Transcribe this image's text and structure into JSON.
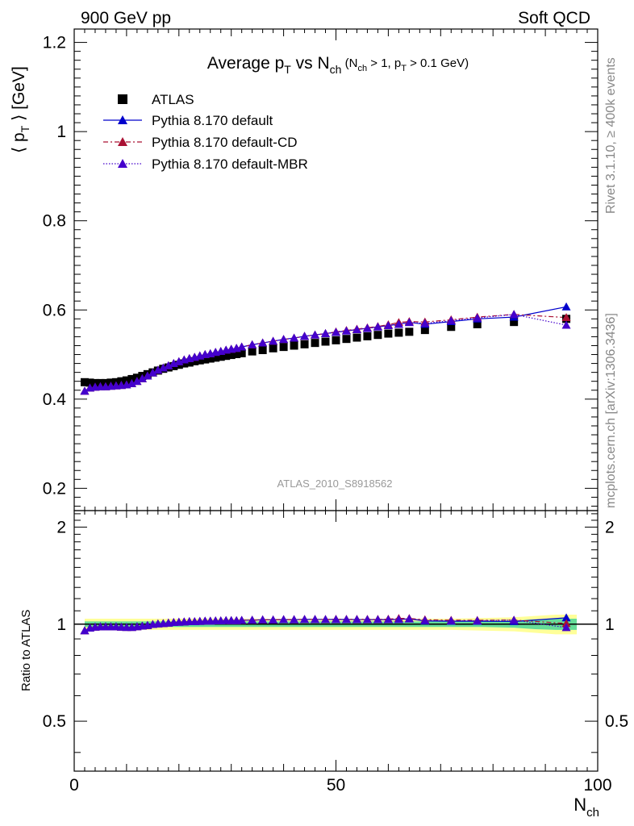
{
  "header": {
    "left": "900 GeV pp",
    "right": "Soft QCD"
  },
  "side_labels": {
    "rivet": "Rivet 3.1.10, ≥ 400k events",
    "mcplots": "mcplots.cern.ch [arXiv:1306.3436]"
  },
  "chart_data": {
    "type": "scatter",
    "title": {
      "main": "Average p",
      "sub_T": "T",
      "vs": " vs N",
      "sub_ch": "ch",
      "cond_open": " (N",
      "cond_ch": "ch",
      "cond_mid": " > 1, p",
      "cond_T": "T",
      "cond_close": " > 0.1 GeV)"
    },
    "watermark": "ATLAS_2010_S8918562",
    "xlabel": {
      "main": "N",
      "sub": "ch"
    },
    "ylabel": {
      "open": "⟨ p",
      "sub": "T",
      "close": " ⟩  [GeV]"
    },
    "ratio_ylabel": "Ratio to ATLAS",
    "xlim": [
      0,
      100
    ],
    "ylim": [
      0.15,
      1.23
    ],
    "ratio_ylim": [
      0.35,
      2.25
    ],
    "x_ticks": [
      "0",
      "50",
      "100"
    ],
    "y_ticks": [
      "0.2",
      "0.4",
      "0.6",
      "0.8",
      "1",
      "1.2"
    ],
    "ratio_ticks": [
      "0.5",
      "1",
      "2"
    ],
    "legend_position": "top-left",
    "x": [
      2,
      3,
      4,
      5,
      6,
      7,
      8,
      9,
      10,
      11,
      12,
      13,
      14,
      15,
      16,
      17,
      18,
      19,
      20,
      21,
      22,
      23,
      24,
      25,
      26,
      27,
      28,
      29,
      30,
      31,
      32,
      34,
      36,
      38,
      40,
      42,
      44,
      46,
      48,
      50,
      52,
      54,
      56,
      58,
      60,
      62,
      64,
      67,
      72,
      77,
      84,
      94
    ],
    "series": [
      {
        "name": "ATLAS",
        "color": "#000000",
        "marker": "square",
        "values": [
          0.438,
          0.437,
          0.436,
          0.436,
          0.436,
          0.437,
          0.438,
          0.44,
          0.442,
          0.445,
          0.448,
          0.452,
          0.456,
          0.46,
          0.464,
          0.468,
          0.471,
          0.474,
          0.477,
          0.48,
          0.482,
          0.485,
          0.487,
          0.489,
          0.491,
          0.493,
          0.495,
          0.497,
          0.499,
          0.501,
          0.503,
          0.507,
          0.51,
          0.514,
          0.517,
          0.52,
          0.523,
          0.526,
          0.529,
          0.532,
          0.535,
          0.538,
          0.541,
          0.544,
          0.547,
          0.549,
          0.551,
          0.555,
          0.562,
          0.568,
          0.573,
          0.58
        ]
      },
      {
        "name": "Pythia 8.170 default",
        "color": "#0000cc",
        "marker": "triangle",
        "dash": "",
        "values": [
          0.418,
          0.425,
          0.427,
          0.428,
          0.428,
          0.429,
          0.43,
          0.431,
          0.432,
          0.435,
          0.44,
          0.446,
          0.452,
          0.459,
          0.465,
          0.47,
          0.475,
          0.48,
          0.484,
          0.488,
          0.491,
          0.494,
          0.497,
          0.5,
          0.502,
          0.505,
          0.507,
          0.51,
          0.512,
          0.514,
          0.517,
          0.522,
          0.526,
          0.53,
          0.534,
          0.537,
          0.541,
          0.544,
          0.547,
          0.55,
          0.553,
          0.556,
          0.559,
          0.562,
          0.565,
          0.568,
          0.572,
          0.568,
          0.574,
          0.58,
          0.584,
          0.607
        ]
      },
      {
        "name": "Pythia 8.170 default-CD",
        "color": "#aa1133",
        "marker": "triangle",
        "dash": "6,3,2,3",
        "values": [
          0.418,
          0.425,
          0.427,
          0.428,
          0.428,
          0.429,
          0.43,
          0.431,
          0.432,
          0.435,
          0.44,
          0.446,
          0.452,
          0.459,
          0.465,
          0.47,
          0.475,
          0.48,
          0.484,
          0.488,
          0.491,
          0.494,
          0.497,
          0.5,
          0.502,
          0.505,
          0.507,
          0.51,
          0.512,
          0.514,
          0.517,
          0.522,
          0.526,
          0.53,
          0.534,
          0.537,
          0.541,
          0.544,
          0.547,
          0.551,
          0.554,
          0.557,
          0.56,
          0.563,
          0.567,
          0.572,
          0.574,
          0.573,
          0.578,
          0.584,
          0.59,
          0.583
        ]
      },
      {
        "name": "Pythia 8.170 default-MBR",
        "color": "#4400cc",
        "marker": "triangle",
        "dash": "1.5,2",
        "values": [
          0.418,
          0.425,
          0.427,
          0.428,
          0.428,
          0.429,
          0.43,
          0.431,
          0.432,
          0.435,
          0.44,
          0.446,
          0.452,
          0.459,
          0.465,
          0.47,
          0.475,
          0.48,
          0.484,
          0.488,
          0.491,
          0.494,
          0.497,
          0.5,
          0.502,
          0.505,
          0.507,
          0.51,
          0.512,
          0.514,
          0.517,
          0.522,
          0.526,
          0.53,
          0.534,
          0.537,
          0.541,
          0.544,
          0.547,
          0.55,
          0.553,
          0.556,
          0.559,
          0.562,
          0.565,
          0.568,
          0.572,
          0.57,
          0.576,
          0.582,
          0.59,
          0.566
        ]
      }
    ],
    "band_colors": {
      "inner": "#66dd99",
      "outer": "#ffff99"
    },
    "band_x": [
      2,
      6,
      10,
      14,
      18,
      22,
      26,
      30,
      36,
      42,
      48,
      54,
      60,
      66,
      72,
      78,
      84,
      88,
      92,
      96
    ],
    "band_inner": [
      0.02,
      0.02,
      0.02,
      0.02,
      0.02,
      0.02,
      0.02,
      0.02,
      0.02,
      0.02,
      0.02,
      0.02,
      0.02,
      0.02,
      0.02,
      0.02,
      0.025,
      0.035,
      0.04,
      0.04
    ],
    "band_outer": [
      0.04,
      0.04,
      0.04,
      0.04,
      0.04,
      0.04,
      0.04,
      0.04,
      0.04,
      0.04,
      0.04,
      0.04,
      0.04,
      0.04,
      0.04,
      0.045,
      0.05,
      0.06,
      0.07,
      0.07
    ]
  }
}
